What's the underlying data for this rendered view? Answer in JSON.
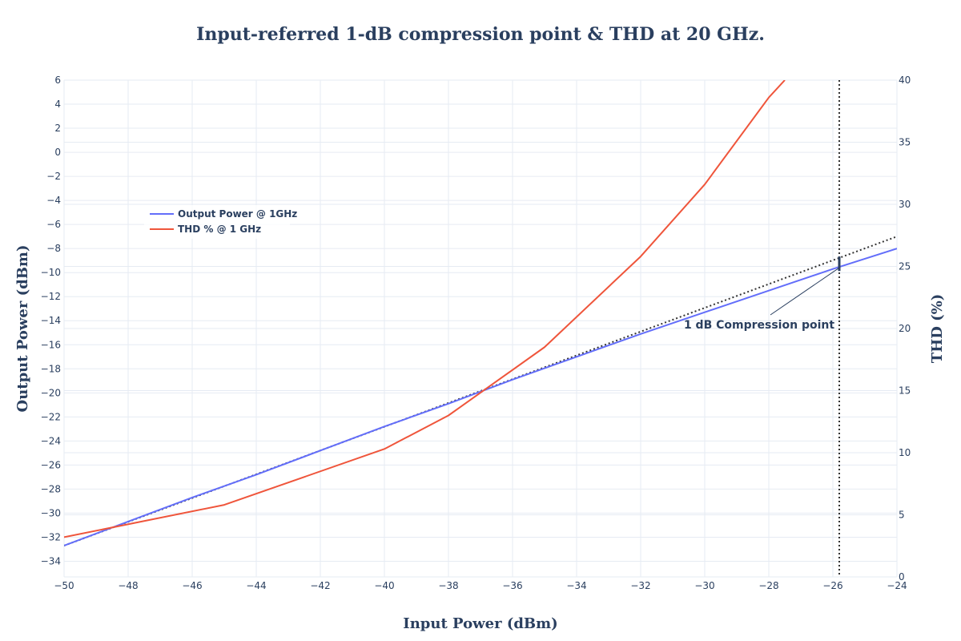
{
  "chart_data": {
    "type": "line",
    "title": "Input-referred 1-dB compression point & THD at 20 GHz.",
    "xlabel": "Input Power (dBm)",
    "ylabel": "Output Power (dBm)",
    "y2label": "THD (%)",
    "xlim": [
      -50,
      -24
    ],
    "ylim": [
      -35.3,
      6
    ],
    "y2lim": [
      0,
      40
    ],
    "x_ticks": [
      -50,
      -48,
      -46,
      -44,
      -42,
      -40,
      -38,
      -36,
      -34,
      -32,
      -30,
      -28,
      -26,
      -24
    ],
    "y_ticks": [
      -34,
      -32,
      -30,
      -28,
      -26,
      -24,
      -22,
      -20,
      -18,
      -16,
      -14,
      -12,
      -10,
      -8,
      -6,
      -4,
      -2,
      0,
      2,
      4,
      6
    ],
    "y2_ticks": [
      0,
      5,
      10,
      15,
      20,
      25,
      30,
      35,
      40
    ],
    "x_tick_labels": [
      "−50",
      "−48",
      "−46",
      "−44",
      "−42",
      "−40",
      "−38",
      "−36",
      "−34",
      "−32",
      "−30",
      "−28",
      "−26",
      "−24"
    ],
    "y_tick_labels": [
      "−34",
      "−32",
      "−30",
      "−28",
      "−26",
      "−24",
      "−22",
      "−20",
      "−18",
      "−16",
      "−14",
      "−12",
      "−10",
      "−8",
      "−6",
      "−4",
      "−2",
      "0",
      "2",
      "4",
      "6"
    ],
    "y2_tick_labels": [
      "0",
      "5",
      "10",
      "15",
      "20",
      "25",
      "30",
      "35",
      "40"
    ],
    "grid": true,
    "legend_placement": "left",
    "series": [
      {
        "name": "Output Power @ 1GHz",
        "axis": "y",
        "color": "#636efa",
        "x": [
          -50,
          -48,
          -46,
          -44,
          -42,
          -40,
          -38,
          -36,
          -34,
          -32,
          -30,
          -28,
          -26,
          -24
        ],
        "values": [
          -32.7,
          -30.7,
          -28.7,
          -26.8,
          -24.8,
          -22.8,
          -20.9,
          -18.9,
          -17.0,
          -15.1,
          -13.3,
          -11.5,
          -9.7,
          -8.0
        ]
      },
      {
        "name": "THD % @ 1 GHz",
        "axis": "y2",
        "color": "#ef553b",
        "x": [
          -50,
          -45,
          -40,
          -38,
          -35,
          -32,
          -30,
          -28,
          -27.5
        ],
        "values": [
          3.2,
          5.8,
          10.3,
          13.0,
          18.5,
          25.8,
          31.6,
          38.6,
          40.0
        ]
      }
    ],
    "reference_lines": [
      {
        "kind": "linear-extrapolation",
        "color": "#333333",
        "style": "dotted",
        "x": [
          -50,
          -24
        ],
        "values": [
          -32.7,
          -7.0
        ]
      },
      {
        "kind": "vertical",
        "color": "#333333",
        "style": "dotted",
        "x": -25.8
      }
    ],
    "annotations": [
      {
        "text": "1 dB Compression point",
        "x": -25.8,
        "y": -9.6
      }
    ]
  }
}
